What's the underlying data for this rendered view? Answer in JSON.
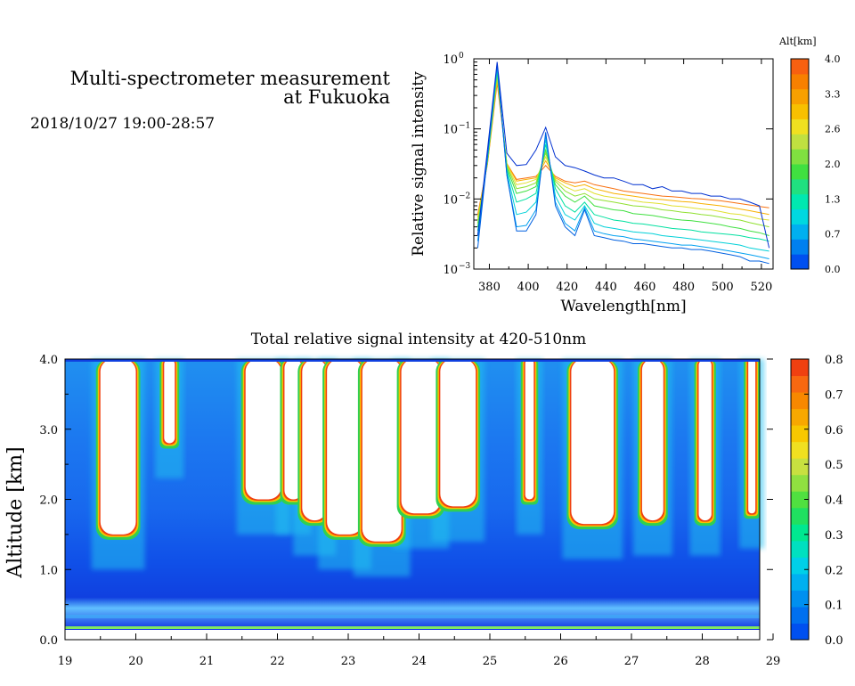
{
  "header": {
    "title_line1": "Multi-spectrometer measurement",
    "title_line2": "at Fukuoka",
    "datetime": "2018/10/27 19:00-28:57"
  },
  "chart_data": [
    {
      "type": "line",
      "title": "",
      "xlabel": "Wavelength[nm]",
      "ylabel": "Relative signal intensity",
      "yscale": "log",
      "xlim": [
        372,
        526
      ],
      "ylim": [
        0.001,
        1
      ],
      "x_ticks": [
        380,
        400,
        420,
        440,
        460,
        480,
        500,
        520
      ],
      "y_ticks": [
        {
          "value": 1,
          "mantissa": "10",
          "exp": "0"
        },
        {
          "value": 0.1,
          "mantissa": "10",
          "exp": "−1"
        },
        {
          "value": 0.01,
          "mantissa": "10",
          "exp": "−2"
        },
        {
          "value": 0.001,
          "mantissa": "10",
          "exp": "−3"
        }
      ],
      "colorbar": {
        "title": "Alt[km]",
        "labels": [
          "4.0",
          "3.3",
          "2.6",
          "2.0",
          "1.3",
          "0.7",
          "0.0"
        ],
        "colors": [
          "#0050f0",
          "#0080f0",
          "#00b0f0",
          "#00d8e0",
          "#00e8b0",
          "#20e080",
          "#40e040",
          "#80e040",
          "#c0e040",
          "#f0e020",
          "#f8c000",
          "#f8a000",
          "#f88000",
          "#f86010"
        ]
      },
      "x": [
        374,
        379,
        384,
        389,
        394,
        399,
        404,
        409,
        414,
        419,
        424,
        429,
        434,
        439,
        444,
        449,
        454,
        459,
        464,
        469,
        474,
        479,
        484,
        489,
        494,
        499,
        504,
        509,
        514,
        519,
        524
      ],
      "series": [
        {
          "color": "#0030d0",
          "values": [
            0.003,
            0.05,
            0.9,
            0.045,
            0.03,
            0.031,
            0.05,
            0.105,
            0.04,
            0.03,
            0.028,
            0.025,
            0.022,
            0.02,
            0.02,
            0.018,
            0.016,
            0.016,
            0.014,
            0.015,
            0.013,
            0.013,
            0.012,
            0.012,
            0.011,
            0.011,
            0.01,
            0.01,
            0.009,
            0.008,
            0.002
          ]
        },
        {
          "color": "#0060e0",
          "values": [
            0.002,
            0.04,
            0.85,
            0.022,
            0.0035,
            0.0035,
            0.006,
            0.09,
            0.008,
            0.004,
            0.003,
            0.007,
            0.003,
            0.0028,
            0.0026,
            0.0025,
            0.0023,
            0.0023,
            0.0022,
            0.0021,
            0.002,
            0.002,
            0.0019,
            0.0019,
            0.0018,
            0.0017,
            0.0016,
            0.0015,
            0.0013,
            0.0013,
            0.0012
          ]
        },
        {
          "color": "#00a0f0",
          "values": [
            0.0025,
            0.04,
            0.8,
            0.022,
            0.004,
            0.0042,
            0.007,
            0.08,
            0.009,
            0.0045,
            0.0035,
            0.0075,
            0.0035,
            0.0032,
            0.003,
            0.0029,
            0.0027,
            0.0026,
            0.0025,
            0.0024,
            0.0023,
            0.0022,
            0.0022,
            0.0021,
            0.002,
            0.0019,
            0.0018,
            0.0017,
            0.0016,
            0.0015,
            0.0014
          ]
        },
        {
          "color": "#00d0d8",
          "values": [
            0.003,
            0.038,
            0.75,
            0.024,
            0.006,
            0.0065,
            0.009,
            0.07,
            0.011,
            0.006,
            0.005,
            0.008,
            0.0045,
            0.004,
            0.0038,
            0.0036,
            0.0034,
            0.0033,
            0.0032,
            0.003,
            0.0029,
            0.0028,
            0.0027,
            0.0026,
            0.0025,
            0.0024,
            0.0023,
            0.0022,
            0.002,
            0.0019,
            0.0018
          ]
        },
        {
          "color": "#00e0a0",
          "values": [
            0.0035,
            0.036,
            0.7,
            0.026,
            0.009,
            0.01,
            0.012,
            0.06,
            0.014,
            0.008,
            0.0065,
            0.009,
            0.006,
            0.0055,
            0.005,
            0.0048,
            0.0045,
            0.0044,
            0.0042,
            0.004,
            0.0038,
            0.0037,
            0.0036,
            0.0034,
            0.0033,
            0.0032,
            0.0031,
            0.003,
            0.0028,
            0.0027,
            0.0025
          ]
        },
        {
          "color": "#40e040",
          "values": [
            0.004,
            0.035,
            0.65,
            0.028,
            0.012,
            0.013,
            0.015,
            0.05,
            0.016,
            0.011,
            0.009,
            0.011,
            0.008,
            0.0075,
            0.007,
            0.0068,
            0.0062,
            0.006,
            0.0058,
            0.0055,
            0.0052,
            0.005,
            0.0049,
            0.0047,
            0.0045,
            0.0043,
            0.004,
            0.0038,
            0.0035,
            0.0033,
            0.003
          ]
        },
        {
          "color": "#90e030",
          "values": [
            0.0045,
            0.034,
            0.6,
            0.03,
            0.014,
            0.015,
            0.017,
            0.045,
            0.018,
            0.013,
            0.011,
            0.012,
            0.01,
            0.0095,
            0.009,
            0.0085,
            0.008,
            0.0078,
            0.0075,
            0.007,
            0.0068,
            0.0065,
            0.0063,
            0.006,
            0.0058,
            0.0055,
            0.0052,
            0.005,
            0.0046,
            0.0043,
            0.004
          ]
        },
        {
          "color": "#e0e030",
          "values": [
            0.005,
            0.033,
            0.55,
            0.031,
            0.016,
            0.017,
            0.019,
            0.04,
            0.019,
            0.015,
            0.013,
            0.014,
            0.012,
            0.011,
            0.0105,
            0.01,
            0.0095,
            0.009,
            0.0088,
            0.0085,
            0.008,
            0.0078,
            0.0075,
            0.0072,
            0.007,
            0.0066,
            0.0062,
            0.006,
            0.0056,
            0.0052,
            0.005
          ]
        },
        {
          "color": "#f8b000",
          "values": [
            0.0055,
            0.032,
            0.5,
            0.032,
            0.018,
            0.019,
            0.02,
            0.035,
            0.02,
            0.017,
            0.015,
            0.016,
            0.014,
            0.013,
            0.012,
            0.0115,
            0.011,
            0.0105,
            0.01,
            0.0098,
            0.0095,
            0.0092,
            0.009,
            0.0086,
            0.0083,
            0.008,
            0.0076,
            0.0072,
            0.0068,
            0.0064,
            0.006
          ]
        },
        {
          "color": "#f87010",
          "values": [
            0.006,
            0.031,
            0.45,
            0.032,
            0.019,
            0.02,
            0.021,
            0.03,
            0.021,
            0.018,
            0.017,
            0.018,
            0.016,
            0.015,
            0.014,
            0.013,
            0.0125,
            0.012,
            0.0115,
            0.011,
            0.0108,
            0.0105,
            0.0102,
            0.01,
            0.0097,
            0.0094,
            0.009,
            0.0086,
            0.0082,
            0.0078,
            0.0075
          ]
        }
      ]
    },
    {
      "type": "heatmap",
      "title": "Total relative signal intensity at 420-510nm",
      "xlabel": "",
      "ylabel": "Altitude [km]",
      "xlim": [
        19,
        29
      ],
      "ylim": [
        0,
        4
      ],
      "x_ticks": [
        "19",
        "20",
        "21",
        "22",
        "23",
        "24",
        "25",
        "26",
        "27",
        "28",
        "29"
      ],
      "y_ticks": [
        "0.0",
        "1.0",
        "2.0",
        "3.0",
        "4.0"
      ],
      "colorbar": {
        "labels": [
          "0.8",
          "0.7",
          "0.6",
          "0.5",
          "0.4",
          "0.3",
          "0.2",
          "0.1",
          "0.0"
        ],
        "colors": [
          "#0050f0",
          "#0070f0",
          "#0090f0",
          "#00b0f0",
          "#00d0e8",
          "#00e0c0",
          "#00e890",
          "#20e060",
          "#50e040",
          "#90e040",
          "#c8e040",
          "#f0e020",
          "#f8c800",
          "#f8a800",
          "#f88800",
          "#f86810",
          "#f04010"
        ]
      },
      "cloud_base_km": [
        {
          "x": 19.5,
          "width": 0.5,
          "base": 1.5
        },
        {
          "x": 20.4,
          "width": 0.15,
          "base": 2.8
        },
        {
          "x": 21.55,
          "width": 0.5,
          "base": 2.0
        },
        {
          "x": 22.1,
          "width": 0.25,
          "base": 2.0
        },
        {
          "x": 22.35,
          "width": 0.35,
          "base": 1.7
        },
        {
          "x": 22.7,
          "width": 0.5,
          "base": 1.5
        },
        {
          "x": 23.2,
          "width": 0.55,
          "base": 1.4
        },
        {
          "x": 23.75,
          "width": 0.55,
          "base": 1.8
        },
        {
          "x": 24.3,
          "width": 0.5,
          "base": 1.9
        },
        {
          "x": 25.5,
          "width": 0.12,
          "base": 2.0
        },
        {
          "x": 26.15,
          "width": 0.6,
          "base": 1.65
        },
        {
          "x": 27.15,
          "width": 0.3,
          "base": 1.7
        },
        {
          "x": 27.95,
          "width": 0.18,
          "base": 1.7
        },
        {
          "x": 28.65,
          "width": 0.1,
          "base": 1.8
        }
      ]
    }
  ]
}
